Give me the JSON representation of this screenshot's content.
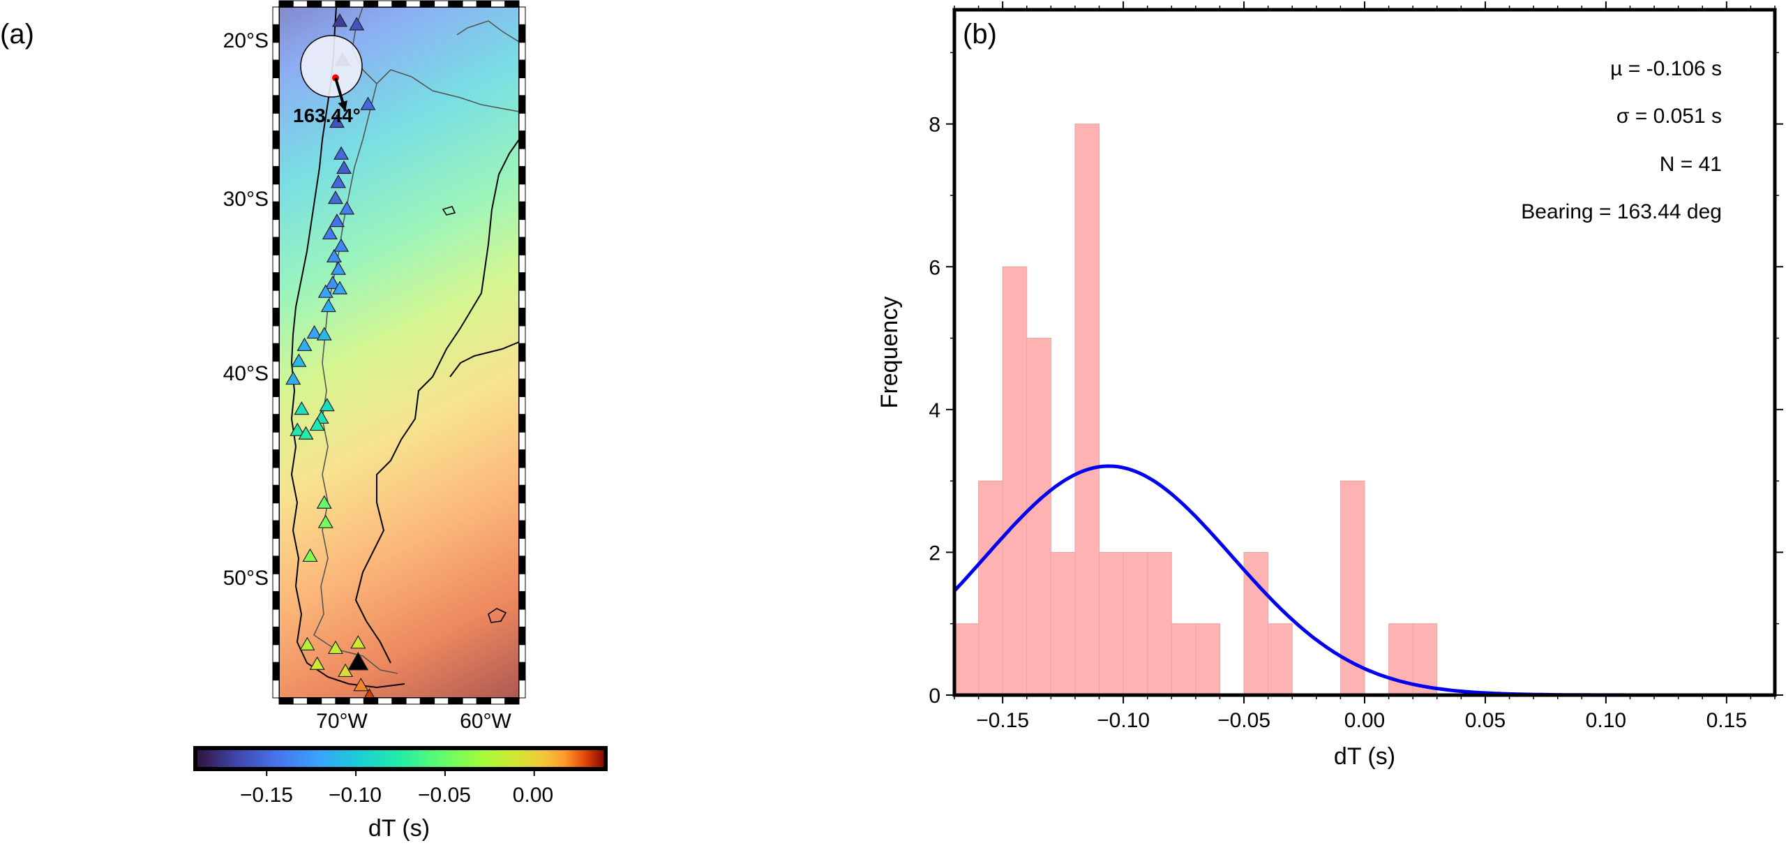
{
  "panel_a": {
    "label": "(a)",
    "lat_ticks": [
      "20°S",
      "30°S",
      "40°S",
      "50°S"
    ],
    "lon_ticks": [
      "70°W",
      "60°W"
    ],
    "bearing_label": "163.44°",
    "colorbar": {
      "ticks": [
        "−0.15",
        "−0.10",
        "−0.05",
        "0.00"
      ],
      "label": "dT (s)"
    }
  },
  "panel_b": {
    "label": "(b)",
    "stats": {
      "mu": "µ = -0.106 s",
      "sigma": "σ = 0.051 s",
      "n": "N = 41",
      "bearing": "Bearing = 163.44 deg"
    }
  },
  "chart_data": [
    {
      "type": "scatter",
      "title": "",
      "xlabel": "",
      "ylabel": "",
      "xlim": [
        -74.5,
        -57.5
      ],
      "ylim": [
        -56.5,
        -17.5
      ],
      "x_ticks": [
        -70,
        -60
      ],
      "y_ticks": [
        -20,
        -30,
        -40,
        -50
      ],
      "colorbar": {
        "label": "dT (s)",
        "range": [
          -0.19,
          0.04
        ],
        "ticks": [
          -0.15,
          -0.1,
          -0.05,
          0.0
        ],
        "colormap": "turbo"
      },
      "bearing_deg": 163.44,
      "event_marker": {
        "x": -70.5,
        "y": -21.5,
        "color": "#ff0000"
      },
      "stations": [
        {
          "x": -70.2,
          "y": -18.3,
          "dT": -0.17
        },
        {
          "x": -69.0,
          "y": -18.5,
          "dT": -0.16
        },
        {
          "x": -70.0,
          "y": -20.5,
          "dT": -0.175
        },
        {
          "x": -68.2,
          "y": -23.0,
          "dT": -0.15
        },
        {
          "x": -70.4,
          "y": -24.0,
          "dT": -0.16
        },
        {
          "x": -70.1,
          "y": -25.8,
          "dT": -0.15
        },
        {
          "x": -69.9,
          "y": -26.6,
          "dT": -0.155
        },
        {
          "x": -70.3,
          "y": -27.4,
          "dT": -0.15
        },
        {
          "x": -70.5,
          "y": -28.3,
          "dT": -0.15
        },
        {
          "x": -69.7,
          "y": -28.9,
          "dT": -0.14
        },
        {
          "x": -70.4,
          "y": -29.6,
          "dT": -0.145
        },
        {
          "x": -70.9,
          "y": -30.3,
          "dT": -0.14
        },
        {
          "x": -70.1,
          "y": -31.0,
          "dT": -0.135
        },
        {
          "x": -70.6,
          "y": -31.6,
          "dT": -0.13
        },
        {
          "x": -70.3,
          "y": -32.3,
          "dT": -0.125
        },
        {
          "x": -70.7,
          "y": -33.1,
          "dT": -0.13
        },
        {
          "x": -70.2,
          "y": -33.4,
          "dT": -0.12
        },
        {
          "x": -71.2,
          "y": -33.6,
          "dT": -0.12
        },
        {
          "x": -71.0,
          "y": -34.4,
          "dT": -0.115
        },
        {
          "x": -72.0,
          "y": -35.9,
          "dT": -0.12
        },
        {
          "x": -71.3,
          "y": -36.0,
          "dT": -0.11
        },
        {
          "x": -72.7,
          "y": -36.6,
          "dT": -0.115
        },
        {
          "x": -73.1,
          "y": -37.5,
          "dT": -0.11
        },
        {
          "x": -73.5,
          "y": -38.5,
          "dT": -0.115
        },
        {
          "x": -72.9,
          "y": -40.2,
          "dT": -0.085
        },
        {
          "x": -71.1,
          "y": -40.0,
          "dT": -0.09
        },
        {
          "x": -71.5,
          "y": -40.7,
          "dT": -0.085
        },
        {
          "x": -73.2,
          "y": -41.4,
          "dT": -0.08
        },
        {
          "x": -72.6,
          "y": -41.6,
          "dT": -0.075
        },
        {
          "x": -71.8,
          "y": -41.1,
          "dT": -0.08
        },
        {
          "x": -71.3,
          "y": -45.5,
          "dT": -0.05
        },
        {
          "x": -71.2,
          "y": -46.6,
          "dT": -0.045
        },
        {
          "x": -72.3,
          "y": -48.5,
          "dT": -0.04
        },
        {
          "x": -72.5,
          "y": -53.5,
          "dT": -0.02
        },
        {
          "x": -70.5,
          "y": -53.7,
          "dT": -0.015
        },
        {
          "x": -68.9,
          "y": -53.4,
          "dT": -0.01
        },
        {
          "x": -71.8,
          "y": -54.6,
          "dT": -0.01
        },
        {
          "x": -69.8,
          "y": -55.0,
          "dT": -0.005
        },
        {
          "x": -68.7,
          "y": -55.8,
          "dT": 0.02
        },
        {
          "x": -68.1,
          "y": -56.4,
          "dT": 0.03
        },
        {
          "x": -68.9,
          "y": -54.5,
          "dT": null
        }
      ]
    },
    {
      "type": "bar",
      "title": "",
      "xlabel": "dT (s)",
      "ylabel": "Frequency",
      "xlim": [
        -0.17,
        0.17
      ],
      "ylim": [
        0,
        9.6
      ],
      "x_ticks": [
        -0.15,
        -0.1,
        -0.05,
        0.0,
        0.05,
        0.1,
        0.15
      ],
      "x_tick_labels": [
        "−0.15",
        "−0.10",
        "−0.05",
        "0.00",
        "0.05",
        "0.10",
        "0.15"
      ],
      "y_ticks": [
        0,
        2,
        4,
        6,
        8
      ],
      "bin_width": 0.01,
      "bin_starts": [
        -0.17,
        -0.16,
        -0.15,
        -0.14,
        -0.13,
        -0.12,
        -0.11,
        -0.1,
        -0.09,
        -0.08,
        -0.07,
        -0.06,
        -0.05,
        -0.04,
        -0.03,
        -0.02,
        -0.01,
        0.0,
        0.01,
        0.02
      ],
      "values": [
        1,
        3,
        6,
        5,
        2,
        8,
        2,
        2,
        2,
        1,
        1,
        0,
        2,
        1,
        0,
        0,
        3,
        0,
        1,
        1
      ],
      "bar_color": "#ffb2b2",
      "curve": {
        "type": "normal",
        "mean": -0.106,
        "std": 0.051,
        "n": 41,
        "color": "#0000ee"
      }
    }
  ]
}
